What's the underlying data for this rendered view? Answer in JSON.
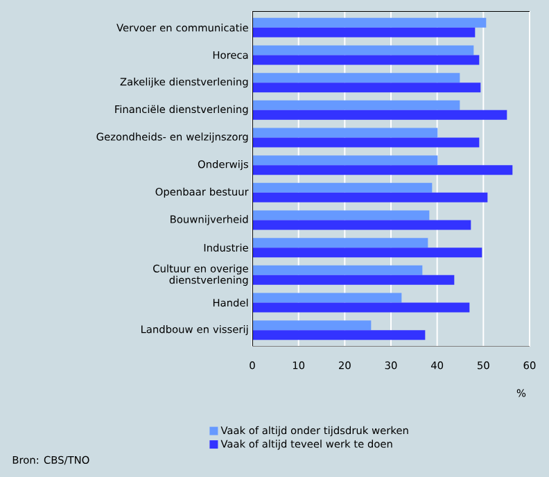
{
  "chart_data": {
    "type": "bar",
    "orientation": "horizontal",
    "categories": [
      "Vervoer en communicatie",
      "Horeca",
      "Zakelijke dienstverlening",
      "Financiële dienstverlening",
      "Gezondheids- en welzijnszorg",
      "Onderwijs",
      "Openbaar bestuur",
      "Bouwnijverheid",
      "Industrie",
      "Cultuur en overige dienstverlening",
      "Handel",
      "Landbouw en visserij"
    ],
    "series": [
      {
        "name": "Vaak of altijd onder tijdsdruk werken",
        "color": "#6699ff",
        "values": [
          50.6,
          47.9,
          44.9,
          44.9,
          40.1,
          40.1,
          38.9,
          38.3,
          38.0,
          36.8,
          32.3,
          25.7
        ]
      },
      {
        "name": "Vaak of altijd teveel werk te doen",
        "color": "#3333ff",
        "values": [
          48.2,
          49.1,
          49.4,
          55.1,
          49.1,
          56.3,
          50.9,
          47.3,
          49.7,
          43.7,
          47.0,
          37.4
        ]
      }
    ],
    "xlabel": "%",
    "xlim": [
      0,
      60
    ],
    "xticks": [
      0,
      10,
      20,
      30,
      40,
      50,
      60
    ],
    "grid": "x",
    "legend": "bottom",
    "annotations": [
      "Bron: CBS/TNO"
    ]
  }
}
